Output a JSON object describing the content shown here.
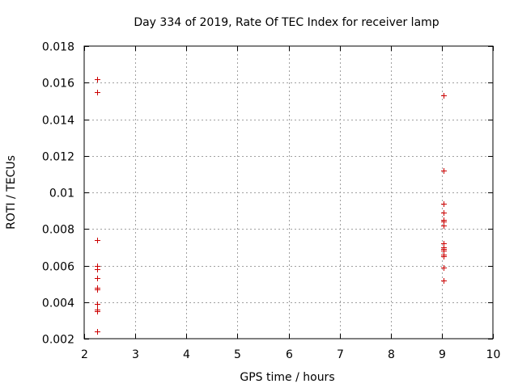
{
  "chart_data": {
    "type": "scatter",
    "title": "Day 334 of 2019, Rate Of TEC Index for receiver lamp",
    "xlabel": "GPS time / hours",
    "ylabel": "ROTI / TECUs",
    "xlim": [
      2,
      10
    ],
    "ylim": [
      0.002,
      0.018
    ],
    "xticks": [
      2,
      3,
      4,
      5,
      6,
      7,
      8,
      9,
      10
    ],
    "xtick_labels": [
      "2",
      "3",
      "4",
      "5",
      "6",
      "7",
      "8",
      "9",
      "10"
    ],
    "yticks": [
      0.002,
      0.004,
      0.006,
      0.008,
      0.01,
      0.012,
      0.014,
      0.016,
      0.018
    ],
    "ytick_labels": [
      "0.002",
      "0.004",
      "0.006",
      "0.008",
      "0.01",
      "0.012",
      "0.014",
      "0.016",
      "0.018"
    ],
    "grid": true,
    "marker": "+",
    "series": [
      {
        "name": "ROTI",
        "color": "#cc0000",
        "points": [
          {
            "x": 2.25,
            "y": 0.0162
          },
          {
            "x": 2.25,
            "y": 0.0155
          },
          {
            "x": 2.25,
            "y": 0.0074
          },
          {
            "x": 2.25,
            "y": 0.006
          },
          {
            "x": 2.25,
            "y": 0.0058
          },
          {
            "x": 2.25,
            "y": 0.0053
          },
          {
            "x": 2.25,
            "y": 0.0048
          },
          {
            "x": 2.25,
            "y": 0.0047
          },
          {
            "x": 2.25,
            "y": 0.0039
          },
          {
            "x": 2.25,
            "y": 0.0036
          },
          {
            "x": 2.25,
            "y": 0.0035
          },
          {
            "x": 2.25,
            "y": 0.0024
          },
          {
            "x": 9.03,
            "y": 0.0153
          },
          {
            "x": 9.03,
            "y": 0.0112
          },
          {
            "x": 9.03,
            "y": 0.0094
          },
          {
            "x": 9.03,
            "y": 0.0089
          },
          {
            "x": 9.03,
            "y": 0.0085
          },
          {
            "x": 9.03,
            "y": 0.0084
          },
          {
            "x": 9.03,
            "y": 0.0082
          },
          {
            "x": 9.03,
            "y": 0.0072
          },
          {
            "x": 9.03,
            "y": 0.007
          },
          {
            "x": 9.03,
            "y": 0.0069
          },
          {
            "x": 9.03,
            "y": 0.0068
          },
          {
            "x": 9.03,
            "y": 0.0066
          },
          {
            "x": 9.03,
            "y": 0.0065
          },
          {
            "x": 9.03,
            "y": 0.0059
          },
          {
            "x": 9.03,
            "y": 0.0052
          }
        ]
      }
    ]
  }
}
